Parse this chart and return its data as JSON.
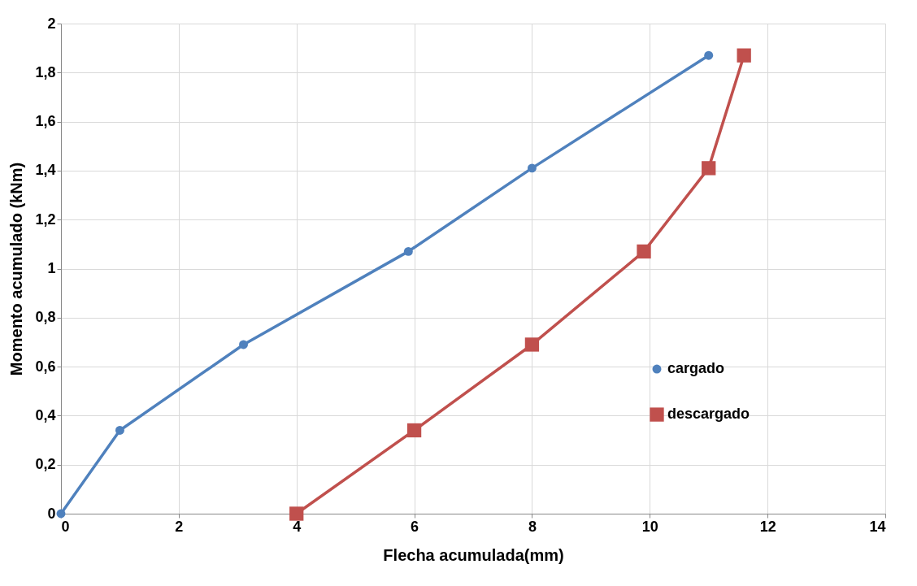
{
  "chart_data": {
    "type": "line",
    "xlabel": "Flecha acumulada(mm)",
    "ylabel": "Momento acumulado (kNm)",
    "xlim": [
      0,
      14
    ],
    "xticks": [
      0,
      2,
      4,
      6,
      8,
      10,
      12,
      14
    ],
    "ylim": [
      0,
      2
    ],
    "yticks": [
      0,
      {
        "value": 0.2,
        "label": "0,2"
      },
      {
        "value": 0.4,
        "label": "0,4"
      },
      {
        "value": 0.6,
        "label": "0,6"
      },
      {
        "value": 0.8,
        "label": "0,8"
      },
      1,
      {
        "value": 1.2,
        "label": "1,2"
      },
      {
        "value": 1.4,
        "label": "1,4"
      },
      {
        "value": 1.6,
        "label": "1,6"
      },
      {
        "value": 1.8,
        "label": "1,8"
      },
      2
    ],
    "grid": true,
    "legend": "right",
    "line_style": "solid",
    "series": [
      {
        "name": "cargado",
        "color": "#4f81bd",
        "marker": "circle",
        "x": [
          0,
          1,
          3.1,
          5.9,
          8,
          11
        ],
        "values": [
          0,
          0.34,
          0.69,
          1.07,
          1.41,
          1.87
        ]
      },
      {
        "name": "descargado",
        "color": "#c0504d",
        "marker": "square",
        "x": [
          4,
          6,
          8,
          9.9,
          11,
          11.6
        ],
        "values": [
          0,
          0.34,
          0.69,
          1.07,
          1.41,
          1.87
        ]
      }
    ]
  }
}
